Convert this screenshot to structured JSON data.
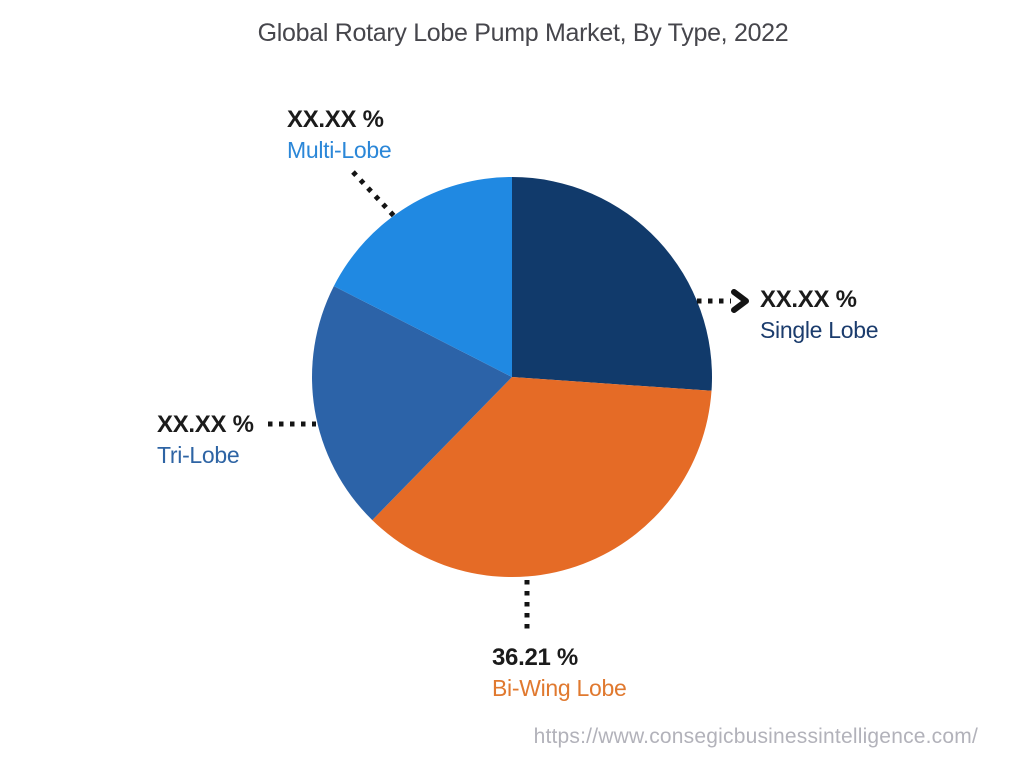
{
  "title": "Global Rotary Lobe Pump Market, By Type, 2022",
  "source_url": "https://www.consegicbusinessintelligence.com/",
  "colors": {
    "background": "#FFFFFF",
    "title_text": "#46464C",
    "percent_text": "#1B1B1B",
    "leader_line": "#141414",
    "url_text": "#B2B2BA"
  },
  "chart_data": {
    "type": "pie",
    "title": "Global Rotary Lobe Pump Market, By Type, 2022",
    "start_angle_deg": 0,
    "direction": "clockwise",
    "grid": false,
    "legend_position": "outside-callouts",
    "slices": [
      {
        "label": "Single Lobe",
        "displayed_value": "XX.XX %",
        "value_pct": 26.1,
        "color": "#113A6B",
        "label_color": "#1B3C6D"
      },
      {
        "label": "Bi-Wing Lobe",
        "displayed_value": "36.21 %",
        "value_pct": 36.21,
        "color": "#E56B26",
        "label_color": "#E0792F"
      },
      {
        "label": "Tri-Lobe",
        "displayed_value": "XX.XX %",
        "value_pct": 20.2,
        "color": "#2C63A8",
        "label_color": "#2E64A4"
      },
      {
        "label": "Multi-Lobe",
        "displayed_value": "XX.XX %",
        "value_pct": 17.49,
        "color": "#2089E2",
        "label_color": "#2B87D8"
      }
    ]
  }
}
